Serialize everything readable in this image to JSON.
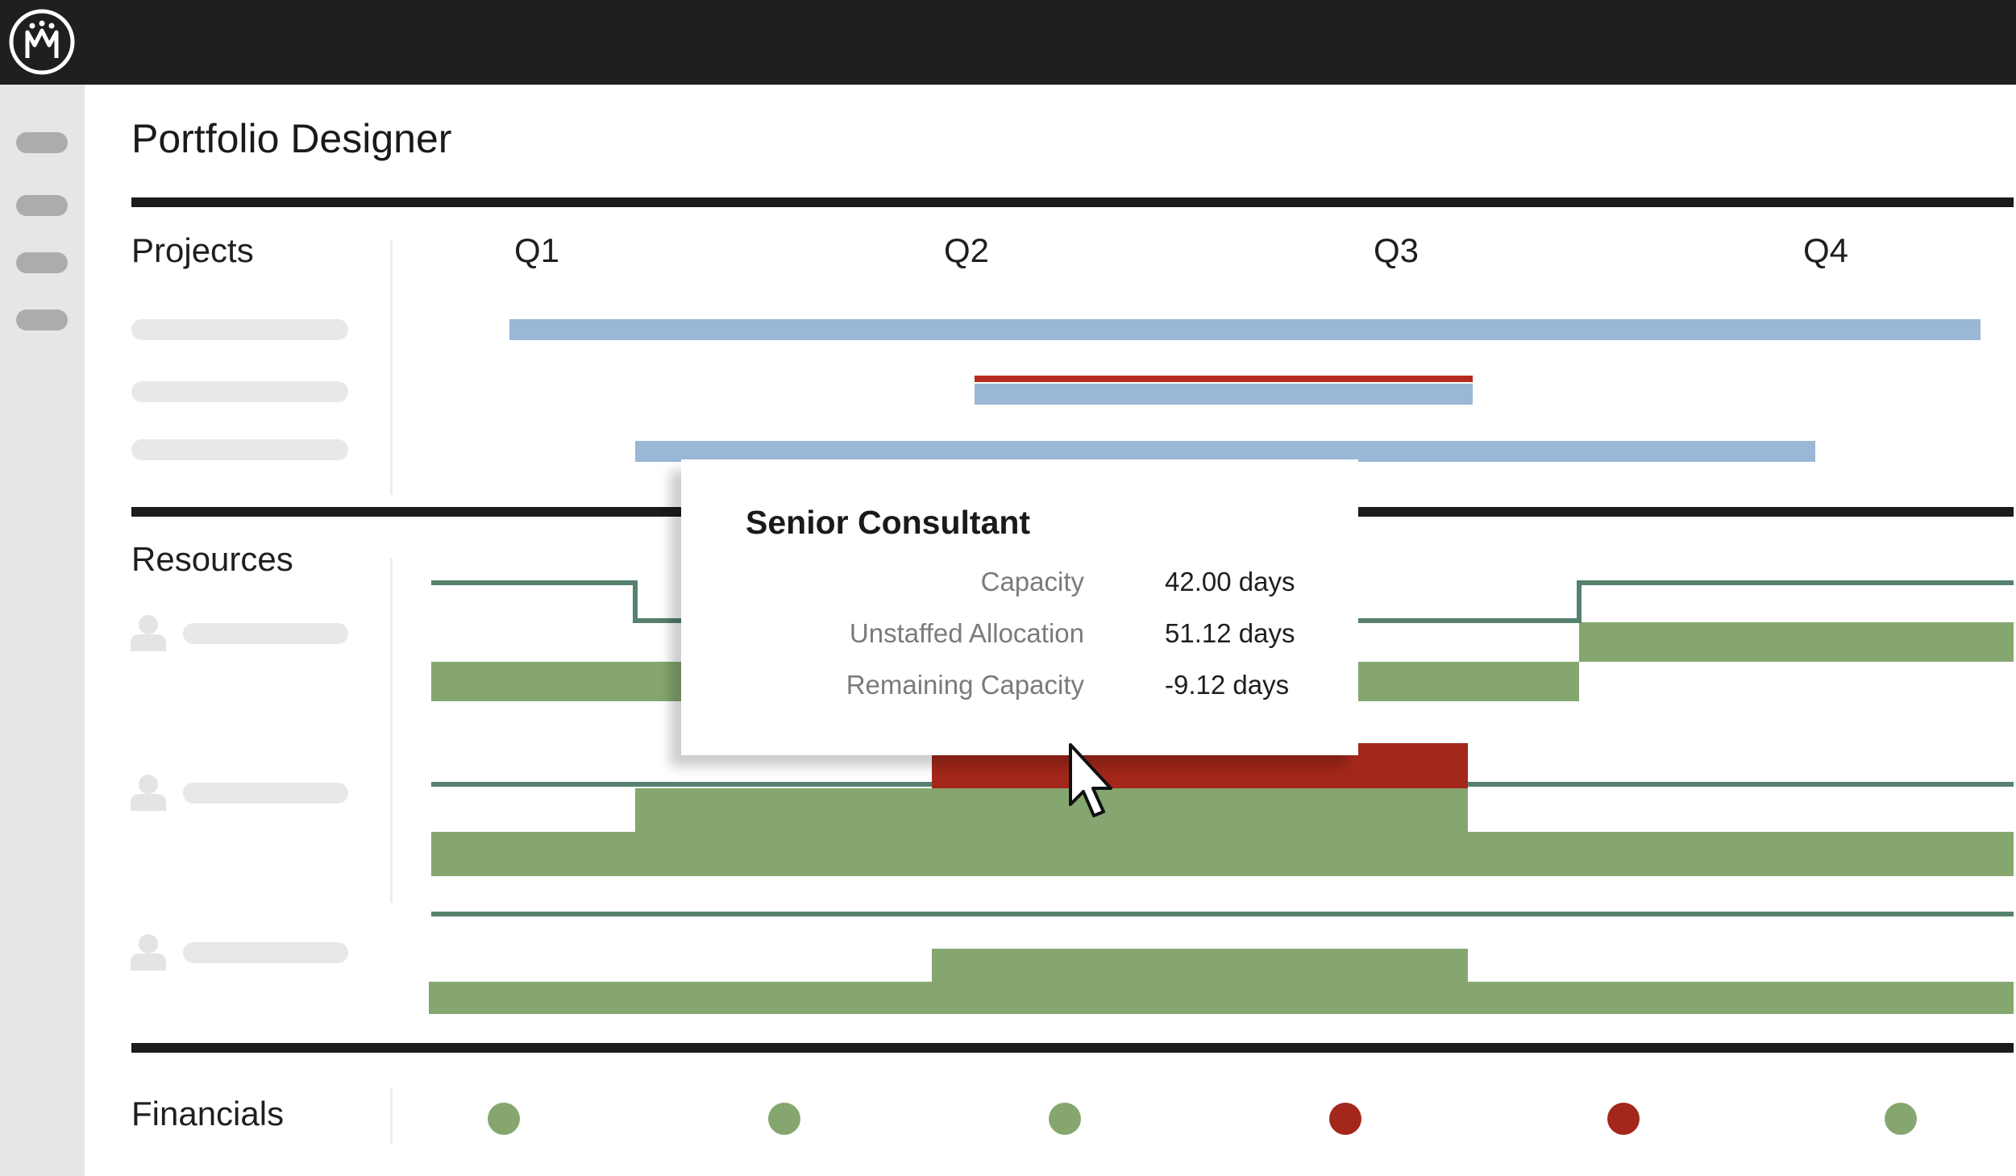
{
  "app": {
    "title": "Portfolio Designer",
    "logo_icon": "crown-logo-icon"
  },
  "colors": {
    "topbar": "#1f1f1e",
    "rail": "#e6e6e6",
    "project_bar": "#9ab7d6",
    "overallocation": "#b62b1f",
    "allocation": "#85a76f",
    "capacity_line": "#55816d",
    "status_good": "#85a76f",
    "status_bad": "#a4271b"
  },
  "sections": {
    "projects": "Projects",
    "resources": "Resources",
    "financials": "Financials"
  },
  "timeline": {
    "quarters": [
      "Q1",
      "Q2",
      "Q3",
      "Q4"
    ]
  },
  "tooltip": {
    "title": "Senior Consultant",
    "rows": [
      {
        "label": "Capacity",
        "value": "42.00 days"
      },
      {
        "label": "Unstaffed Allocation",
        "value": "51.12 days"
      },
      {
        "label": "Remaining Capacity",
        "value": "-9.12 days"
      }
    ]
  },
  "financials": {
    "statuses": [
      "good",
      "good",
      "good",
      "bad",
      "bad",
      "good"
    ]
  },
  "icons": {
    "person": "person-icon",
    "cursor": "mouse-pointer-icon"
  }
}
